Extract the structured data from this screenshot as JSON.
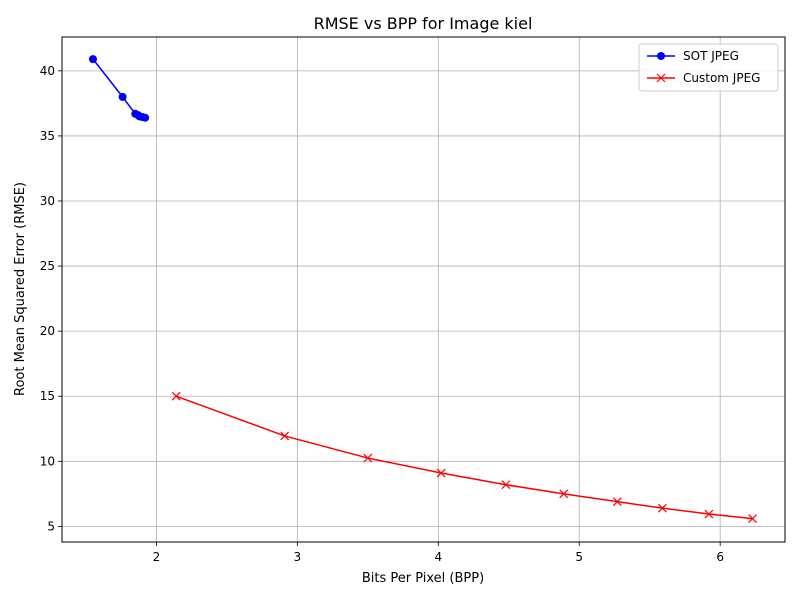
{
  "chart_data": {
    "type": "line",
    "title": "RMSE vs BPP for Image kiel",
    "xlabel": "Bits Per Pixel (BPP)",
    "ylabel": "Root Mean Squared Error (RMSE)",
    "xlim": [
      1.33,
      6.46
    ],
    "ylim": [
      3.8,
      42.6
    ],
    "xticks": [
      2,
      3,
      4,
      5,
      6
    ],
    "yticks": [
      5,
      10,
      15,
      20,
      25,
      30,
      35,
      40
    ],
    "grid": true,
    "legend_position": "upper right",
    "series": [
      {
        "name": "SOT JPEG",
        "color": "#0000ff",
        "marker": "circle",
        "points": [
          [
            1.55,
            40.9
          ],
          [
            1.76,
            38.0
          ],
          [
            1.85,
            36.7
          ],
          [
            1.87,
            36.6
          ],
          [
            1.88,
            36.5
          ],
          [
            1.9,
            36.45
          ],
          [
            1.92,
            36.4
          ]
        ]
      },
      {
        "name": "Custom JPEG",
        "color": "#ff0000",
        "marker": "x",
        "points": [
          [
            2.14,
            15.0
          ],
          [
            2.91,
            11.95
          ],
          [
            3.5,
            10.25
          ],
          [
            4.02,
            9.1
          ],
          [
            4.48,
            8.2
          ],
          [
            4.89,
            7.5
          ],
          [
            5.27,
            6.9
          ],
          [
            5.59,
            6.4
          ],
          [
            5.92,
            5.95
          ],
          [
            6.23,
            5.6
          ]
        ]
      }
    ]
  }
}
